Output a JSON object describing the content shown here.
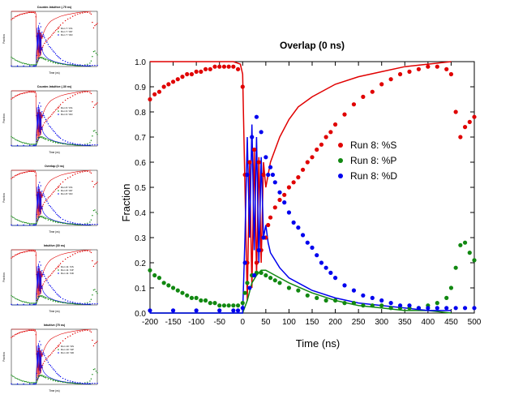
{
  "colors": {
    "S": "#e00000",
    "P": "#118811",
    "D": "#0000ee",
    "axis": "#000000"
  },
  "thumbnails": [
    {
      "title": "Counter-Intuitive (-75 ns)",
      "legend": [
        "Run 7: %S",
        "Run 7: %P",
        "Run 7: %D"
      ]
    },
    {
      "title": "Counter-Intuitive (-30 ns)",
      "legend": [
        "Run 9: %S",
        "Run 9: %P",
        "Run 9: %D"
      ]
    },
    {
      "title": "Overlap (0 ns)",
      "legend": [
        "Run 8: %S",
        "Run 8: %P",
        "Run 8: %D"
      ]
    },
    {
      "title": "Intuitive (30 ns)",
      "legend": [
        "Run 11: %S",
        "Run 11: %P",
        "Run 11: %D"
      ]
    },
    {
      "title": "Intuitive (75 ns)",
      "legend": [
        "Run 10: %S",
        "Run 10: %P",
        "Run 10: %D"
      ]
    }
  ],
  "chart_data": {
    "type": "scatter",
    "title": "Overlap (0 ns)",
    "xlabel": "Time (ns)",
    "ylabel": "Fraction",
    "xlim": [
      -200,
      500
    ],
    "ylim": [
      0,
      1.0
    ],
    "xticks": [
      -200,
      -150,
      -100,
      -50,
      0,
      50,
      100,
      150,
      200,
      250,
      300,
      350,
      400,
      450,
      500
    ],
    "yticks": [
      0.0,
      0.1,
      0.2,
      0.3,
      0.4,
      0.5,
      0.6,
      0.7,
      0.8,
      0.9,
      1.0
    ],
    "grid": false,
    "legend_position": "center-right",
    "series": [
      {
        "name": "Run 8: %S",
        "color": "#e00000",
        "x": [
          -200,
          -190,
          -180,
          -170,
          -160,
          -150,
          -140,
          -130,
          -120,
          -110,
          -100,
          -90,
          -80,
          -70,
          -60,
          -50,
          -40,
          -30,
          -20,
          -10,
          0,
          5,
          10,
          15,
          20,
          25,
          30,
          35,
          40,
          45,
          50,
          55,
          60,
          70,
          80,
          90,
          100,
          110,
          120,
          130,
          140,
          150,
          160,
          170,
          180,
          190,
          200,
          220,
          240,
          260,
          280,
          300,
          320,
          340,
          360,
          380,
          400,
          420,
          440,
          450,
          460,
          470,
          480,
          490,
          500
        ],
        "y": [
          0.85,
          0.87,
          0.88,
          0.9,
          0.91,
          0.92,
          0.93,
          0.94,
          0.95,
          0.95,
          0.96,
          0.96,
          0.97,
          0.97,
          0.98,
          0.98,
          0.98,
          0.98,
          0.98,
          0.97,
          0.9,
          0.55,
          0.2,
          0.6,
          0.15,
          0.65,
          0.2,
          0.6,
          0.25,
          0.55,
          0.3,
          0.35,
          0.38,
          0.42,
          0.45,
          0.47,
          0.5,
          0.52,
          0.54,
          0.57,
          0.6,
          0.62,
          0.65,
          0.67,
          0.7,
          0.72,
          0.75,
          0.79,
          0.83,
          0.86,
          0.88,
          0.91,
          0.93,
          0.95,
          0.96,
          0.97,
          0.98,
          0.98,
          0.97,
          0.95,
          0.8,
          0.7,
          0.74,
          0.76,
          0.78
        ]
      },
      {
        "name": "Run 8: %P",
        "color": "#118811",
        "x": [
          -200,
          -190,
          -180,
          -170,
          -160,
          -150,
          -140,
          -130,
          -120,
          -110,
          -100,
          -90,
          -80,
          -70,
          -60,
          -50,
          -40,
          -30,
          -20,
          -10,
          0,
          5,
          10,
          20,
          30,
          40,
          50,
          60,
          70,
          80,
          100,
          120,
          140,
          160,
          180,
          200,
          220,
          240,
          260,
          280,
          300,
          320,
          340,
          360,
          380,
          400,
          420,
          440,
          450,
          460,
          470,
          480,
          490,
          500
        ],
        "y": [
          0.17,
          0.15,
          0.14,
          0.12,
          0.11,
          0.1,
          0.09,
          0.08,
          0.07,
          0.06,
          0.06,
          0.05,
          0.05,
          0.04,
          0.04,
          0.03,
          0.03,
          0.03,
          0.03,
          0.03,
          0.04,
          0.08,
          0.12,
          0.15,
          0.16,
          0.16,
          0.15,
          0.14,
          0.13,
          0.12,
          0.1,
          0.09,
          0.07,
          0.06,
          0.05,
          0.05,
          0.04,
          0.04,
          0.03,
          0.03,
          0.03,
          0.02,
          0.02,
          0.02,
          0.02,
          0.03,
          0.04,
          0.06,
          0.1,
          0.18,
          0.27,
          0.28,
          0.24,
          0.21
        ]
      },
      {
        "name": "Run 8: %D",
        "color": "#0000ee",
        "x": [
          -200,
          -150,
          -100,
          -50,
          -20,
          -10,
          0,
          5,
          10,
          15,
          20,
          25,
          30,
          35,
          40,
          45,
          50,
          55,
          60,
          65,
          70,
          80,
          90,
          100,
          110,
          120,
          130,
          140,
          150,
          160,
          170,
          180,
          190,
          200,
          220,
          240,
          260,
          280,
          300,
          320,
          340,
          360,
          380,
          400,
          420,
          440,
          460,
          480,
          500
        ],
        "y": [
          0.01,
          0.01,
          0.01,
          0.01,
          0.01,
          0.01,
          0.02,
          0.2,
          0.55,
          0.1,
          0.7,
          0.15,
          0.78,
          0.25,
          0.72,
          0.3,
          0.62,
          0.55,
          0.58,
          0.55,
          0.52,
          0.48,
          0.44,
          0.4,
          0.36,
          0.34,
          0.31,
          0.28,
          0.26,
          0.23,
          0.2,
          0.18,
          0.16,
          0.14,
          0.11,
          0.09,
          0.07,
          0.06,
          0.05,
          0.04,
          0.03,
          0.03,
          0.02,
          0.02,
          0.02,
          0.02,
          0.02,
          0.02,
          0.02
        ]
      }
    ],
    "fit_lines": [
      {
        "color": "#e00000",
        "x": [
          -200,
          -20,
          -5,
          0,
          5,
          10,
          15,
          20,
          25,
          30,
          35,
          40,
          45,
          50,
          55,
          60,
          80,
          100,
          120,
          150,
          200,
          250,
          300,
          350,
          400,
          450
        ],
        "y": [
          1.0,
          1.0,
          0.99,
          0.95,
          0.5,
          0.05,
          0.6,
          0.1,
          0.65,
          0.15,
          0.62,
          0.2,
          0.6,
          0.5,
          0.55,
          0.6,
          0.7,
          0.77,
          0.82,
          0.86,
          0.91,
          0.94,
          0.96,
          0.98,
          0.99,
          1.0
        ]
      },
      {
        "color": "#118811",
        "x": [
          -200,
          -20,
          0,
          10,
          20,
          30,
          40,
          50,
          60,
          80,
          100,
          150,
          200,
          250,
          300,
          350,
          400,
          450
        ],
        "y": [
          0.0,
          0.0,
          0.0,
          0.05,
          0.12,
          0.15,
          0.17,
          0.17,
          0.16,
          0.14,
          0.12,
          0.08,
          0.05,
          0.03,
          0.02,
          0.01,
          0.01,
          0.0
        ]
      },
      {
        "color": "#0000ee",
        "x": [
          -200,
          -10,
          0,
          5,
          10,
          15,
          20,
          25,
          30,
          35,
          40,
          45,
          50,
          55,
          60,
          80,
          100,
          150,
          200,
          250,
          300,
          350,
          400,
          450
        ],
        "y": [
          0.0,
          0.0,
          0.0,
          0.3,
          0.7,
          0.3,
          0.75,
          0.25,
          0.7,
          0.2,
          0.62,
          0.3,
          0.35,
          0.28,
          0.24,
          0.18,
          0.14,
          0.09,
          0.06,
          0.04,
          0.03,
          0.02,
          0.01,
          0.01
        ]
      }
    ]
  }
}
